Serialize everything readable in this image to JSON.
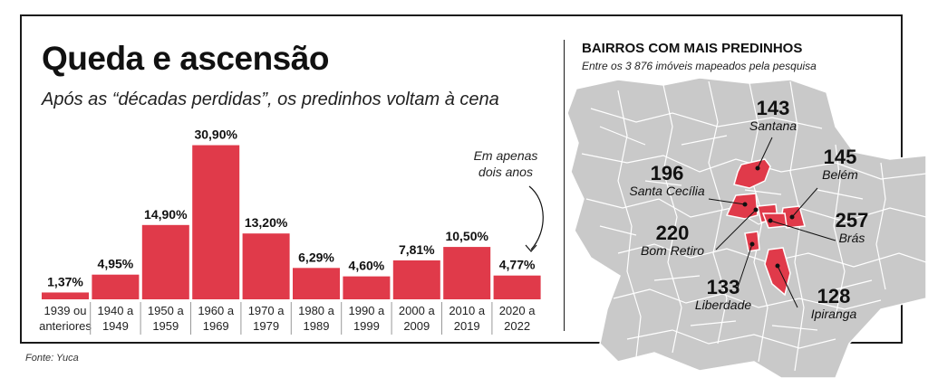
{
  "title": "Queda e ascensão",
  "subtitle": "Após as “décadas perdidas”, os predinhos voltam à cena",
  "source": "Fonte: Yuca",
  "annotation": "Em apenas dois anos",
  "colors": {
    "bar": "#e03a4a",
    "map_base": "#c9c9c9",
    "map_lines": "#ffffff",
    "map_highlight": "#e03a4a"
  },
  "chart_data": {
    "type": "bar",
    "categories": [
      [
        "1939 ou",
        "anteriores"
      ],
      [
        "1940 a",
        "1949"
      ],
      [
        "1950 a",
        "1959"
      ],
      [
        "1960 a",
        "1969"
      ],
      [
        "1970 a",
        "1979"
      ],
      [
        "1980 a",
        "1989"
      ],
      [
        "1990 a",
        "1999"
      ],
      [
        "2000 a",
        "2009"
      ],
      [
        "2010 a",
        "2019"
      ],
      [
        "2020 a",
        "2022"
      ]
    ],
    "values": [
      1.37,
      4.95,
      14.9,
      30.9,
      13.2,
      6.29,
      4.6,
      7.81,
      10.5,
      4.77
    ],
    "labels": [
      "1,37%",
      "4,95%",
      "14,90%",
      "30,90%",
      "13,20%",
      "6,29%",
      "4,60%",
      "7,81%",
      "10,50%",
      "4,77%"
    ],
    "ylim": [
      0,
      31
    ]
  },
  "map": {
    "title": "BAIRROS COM MAIS PREDINHOS",
    "subtitle": "Entre os 3 876 imóveis mapeados pela pesquisa",
    "neighborhoods": [
      {
        "name": "Santana",
        "count": "143"
      },
      {
        "name": "Belém",
        "count": "145"
      },
      {
        "name": "Santa Cecília",
        "count": "196"
      },
      {
        "name": "Bom Retiro",
        "count": "220"
      },
      {
        "name": "Brás",
        "count": "257"
      },
      {
        "name": "Liberdade",
        "count": "133"
      },
      {
        "name": "Ipiranga",
        "count": "128"
      }
    ]
  }
}
